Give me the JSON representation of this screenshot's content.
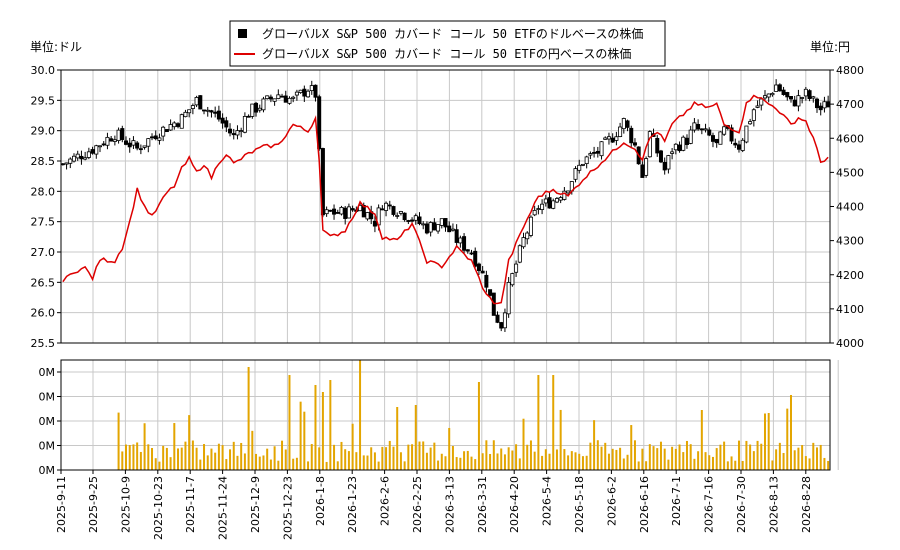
{
  "chart_data": {
    "type": "candlestick-with-line-and-volume",
    "left_unit_label": "単位:ドル",
    "right_unit_label": "単位:円",
    "legend": [
      {
        "name": "グローバルX S&P 500 カバード コール 50 ETFのドルベースの株価",
        "color": "#000000",
        "marker": "square"
      },
      {
        "name": "グローバルX S&P 500 カバード コール 50 ETFの円ベースの株価",
        "color": "#dd0000",
        "marker": "line"
      }
    ],
    "usd_axis": {
      "min": 25.5,
      "max": 30.0,
      "ticks": [
        "25.5",
        "26.0",
        "26.5",
        "27.0",
        "27.5",
        "28.0",
        "28.5",
        "29.0",
        "29.5",
        "30.0"
      ]
    },
    "jpy_axis": {
      "min": 4000,
      "max": 4800,
      "ticks": [
        "4000",
        "4100",
        "4200",
        "4300",
        "4400",
        "4500",
        "4600",
        "4700",
        "4800"
      ]
    },
    "volume_axis": {
      "ticks": [
        "0M",
        "0M",
        "0M",
        "0M",
        "0M"
      ]
    },
    "x_labels": [
      "2025-9-11",
      "2025-9-25",
      "2025-10-9",
      "2025-10-23",
      "2025-11-7",
      "2025-11-24",
      "2025-12-9",
      "2025-12-23",
      "2026-1-8",
      "2026-1-23",
      "2026-2-6",
      "2026-2-25",
      "2026-3-13",
      "2026-3-31",
      "2026-4-20",
      "2026-5-4",
      "2026-5-18",
      "2026-6-2",
      "2026-6-16",
      "2026-7-1",
      "2026-7-16",
      "2026-7-30",
      "2026-8-13",
      "2026-8-28"
    ],
    "usd_keypoints": [
      [
        0,
        28.45
      ],
      [
        8,
        28.7
      ],
      [
        14,
        28.95
      ],
      [
        20,
        28.7
      ],
      [
        25,
        28.95
      ],
      [
        32,
        29.2
      ],
      [
        36,
        29.5
      ],
      [
        42,
        29.2
      ],
      [
        46,
        28.9
      ],
      [
        50,
        29.3
      ],
      [
        54,
        29.45
      ],
      [
        58,
        29.6
      ],
      [
        62,
        29.5
      ],
      [
        66,
        29.7
      ],
      [
        68,
        29.6
      ],
      [
        70,
        27.6
      ],
      [
        72,
        27.65
      ],
      [
        76,
        27.65
      ],
      [
        80,
        27.75
      ],
      [
        84,
        27.5
      ],
      [
        86,
        27.8
      ],
      [
        90,
        27.7
      ],
      [
        94,
        27.55
      ],
      [
        98,
        27.4
      ],
      [
        102,
        27.5
      ],
      [
        106,
        27.2
      ],
      [
        110,
        27.0
      ],
      [
        114,
        26.5
      ],
      [
        116,
        26.0
      ],
      [
        118,
        25.8
      ],
      [
        120,
        26.4
      ],
      [
        124,
        27.2
      ],
      [
        128,
        27.75
      ],
      [
        132,
        27.85
      ],
      [
        136,
        28.1
      ],
      [
        140,
        28.5
      ],
      [
        144,
        28.65
      ],
      [
        148,
        28.9
      ],
      [
        151,
        29.15
      ],
      [
        154,
        28.75
      ],
      [
        156,
        28.25
      ],
      [
        158,
        28.95
      ],
      [
        160,
        28.65
      ],
      [
        162,
        28.35
      ],
      [
        164,
        28.7
      ],
      [
        168,
        28.85
      ],
      [
        170,
        29.05
      ],
      [
        174,
        28.9
      ],
      [
        176,
        28.75
      ],
      [
        178,
        29.0
      ],
      [
        182,
        28.75
      ],
      [
        186,
        29.35
      ],
      [
        190,
        29.6
      ],
      [
        192,
        29.75
      ],
      [
        196,
        29.45
      ],
      [
        200,
        29.6
      ],
      [
        204,
        29.35
      ],
      [
        206,
        29.45
      ]
    ],
    "jpy_keypoints": [
      [
        0,
        4180
      ],
      [
        3,
        4210
      ],
      [
        6,
        4220
      ],
      [
        8,
        4190
      ],
      [
        10,
        4245
      ],
      [
        14,
        4240
      ],
      [
        16,
        4280
      ],
      [
        18,
        4355
      ],
      [
        20,
        4450
      ],
      [
        22,
        4400
      ],
      [
        24,
        4370
      ],
      [
        28,
        4440
      ],
      [
        30,
        4460
      ],
      [
        32,
        4510
      ],
      [
        34,
        4540
      ],
      [
        36,
        4500
      ],
      [
        38,
        4525
      ],
      [
        40,
        4485
      ],
      [
        42,
        4530
      ],
      [
        44,
        4555
      ],
      [
        46,
        4525
      ],
      [
        50,
        4555
      ],
      [
        54,
        4575
      ],
      [
        58,
        4580
      ],
      [
        62,
        4640
      ],
      [
        66,
        4620
      ],
      [
        68,
        4660
      ],
      [
        69,
        4540
      ],
      [
        70,
        4330
      ],
      [
        72,
        4310
      ],
      [
        76,
        4330
      ],
      [
        80,
        4410
      ],
      [
        84,
        4380
      ],
      [
        86,
        4310
      ],
      [
        90,
        4300
      ],
      [
        94,
        4350
      ],
      [
        98,
        4240
      ],
      [
        102,
        4225
      ],
      [
        106,
        4280
      ],
      [
        110,
        4240
      ],
      [
        114,
        4140
      ],
      [
        116,
        4120
      ],
      [
        118,
        4115
      ],
      [
        120,
        4240
      ],
      [
        124,
        4340
      ],
      [
        128,
        4430
      ],
      [
        132,
        4450
      ],
      [
        136,
        4430
      ],
      [
        140,
        4480
      ],
      [
        144,
        4520
      ],
      [
        148,
        4560
      ],
      [
        151,
        4590
      ],
      [
        154,
        4570
      ],
      [
        156,
        4540
      ],
      [
        158,
        4600
      ],
      [
        160,
        4620
      ],
      [
        162,
        4590
      ],
      [
        164,
        4640
      ],
      [
        168,
        4680
      ],
      [
        170,
        4700
      ],
      [
        174,
        4690
      ],
      [
        176,
        4700
      ],
      [
        178,
        4640
      ],
      [
        182,
        4620
      ],
      [
        184,
        4700
      ],
      [
        186,
        4730
      ],
      [
        190,
        4700
      ],
      [
        192,
        4690
      ],
      [
        196,
        4640
      ],
      [
        198,
        4660
      ],
      [
        200,
        4650
      ],
      [
        202,
        4600
      ],
      [
        204,
        4530
      ],
      [
        206,
        4545
      ]
    ]
  }
}
